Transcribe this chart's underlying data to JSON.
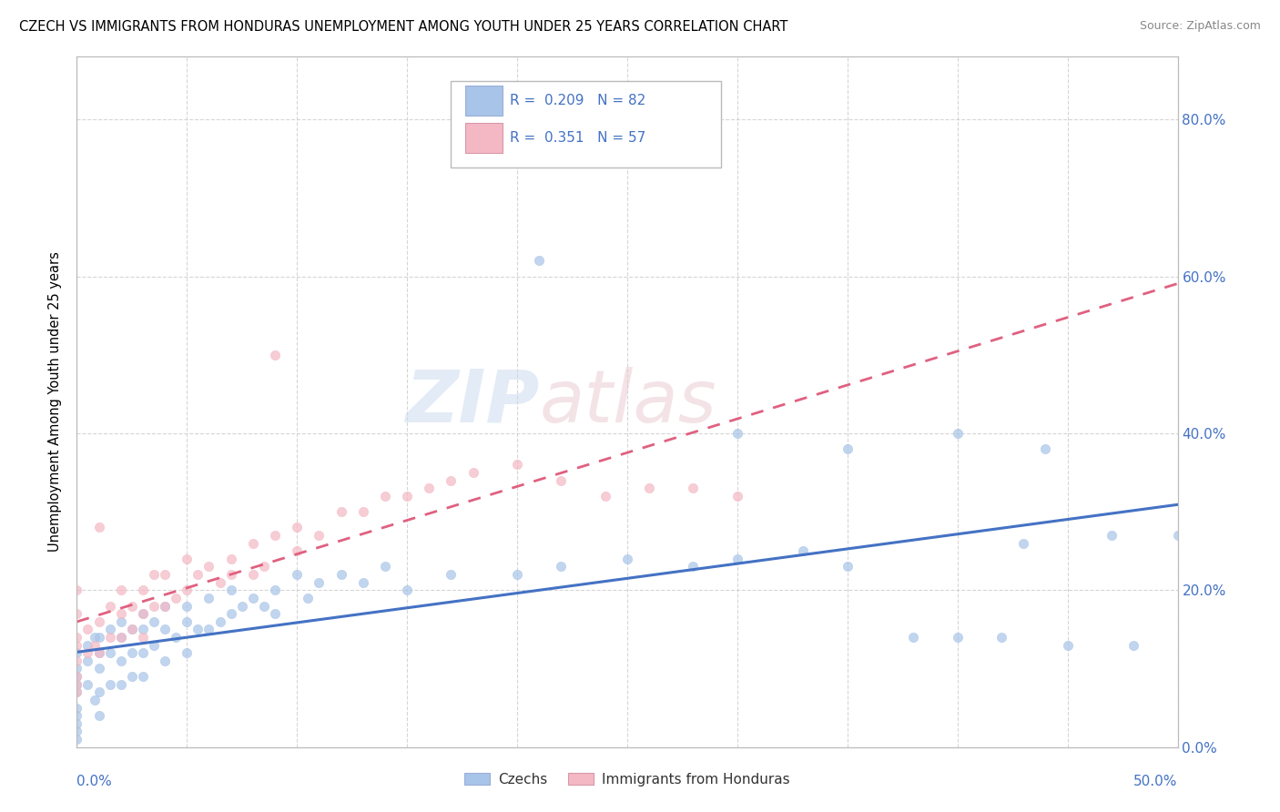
{
  "title": "CZECH VS IMMIGRANTS FROM HONDURAS UNEMPLOYMENT AMONG YOUTH UNDER 25 YEARS CORRELATION CHART",
  "source": "Source: ZipAtlas.com",
  "ylabel": "Unemployment Among Youth under 25 years",
  "right_ytick_vals": [
    0.0,
    0.2,
    0.4,
    0.6,
    0.8
  ],
  "right_ytick_labels": [
    "0.0%",
    "20.0%",
    "40.0%",
    "60.0%",
    "80.0%"
  ],
  "xlim": [
    0.0,
    0.5
  ],
  "ylim": [
    0.0,
    0.88
  ],
  "legend_R1": "0.209",
  "legend_N1": "82",
  "legend_R2": "0.351",
  "legend_N2": "57",
  "color_czech": "#a8c4e8",
  "color_czech_line": "#4472c4",
  "color_honduras": "#f4b8c4",
  "color_honduras_line": "#e06080",
  "color_label_blue": "#4472c4",
  "color_dark": "#333333",
  "watermark_color": "#d0dff0",
  "watermark_color2": "#e8d0d8",
  "background": "#ffffff",
  "grid_color": "#cccccc",
  "czechs_x": [
    0.0,
    0.0,
    0.0,
    0.0,
    0.0,
    0.0,
    0.0,
    0.0,
    0.0,
    0.0,
    0.005,
    0.005,
    0.005,
    0.008,
    0.008,
    0.01,
    0.01,
    0.01,
    0.01,
    0.01,
    0.015,
    0.015,
    0.015,
    0.02,
    0.02,
    0.02,
    0.02,
    0.025,
    0.025,
    0.025,
    0.03,
    0.03,
    0.03,
    0.03,
    0.035,
    0.035,
    0.04,
    0.04,
    0.04,
    0.045,
    0.05,
    0.05,
    0.05,
    0.055,
    0.06,
    0.06,
    0.065,
    0.07,
    0.07,
    0.075,
    0.08,
    0.085,
    0.09,
    0.09,
    0.1,
    0.105,
    0.11,
    0.12,
    0.13,
    0.14,
    0.15,
    0.17,
    0.2,
    0.22,
    0.25,
    0.28,
    0.3,
    0.33,
    0.35,
    0.38,
    0.4,
    0.42,
    0.43,
    0.45,
    0.47,
    0.48,
    0.21,
    0.3,
    0.35,
    0.4,
    0.44,
    0.5
  ],
  "czechs_y": [
    0.12,
    0.1,
    0.09,
    0.08,
    0.07,
    0.05,
    0.04,
    0.03,
    0.02,
    0.01,
    0.13,
    0.11,
    0.08,
    0.14,
    0.06,
    0.14,
    0.12,
    0.1,
    0.07,
    0.04,
    0.15,
    0.12,
    0.08,
    0.16,
    0.14,
    0.11,
    0.08,
    0.15,
    0.12,
    0.09,
    0.17,
    0.15,
    0.12,
    0.09,
    0.16,
    0.13,
    0.18,
    0.15,
    0.11,
    0.14,
    0.18,
    0.16,
    0.12,
    0.15,
    0.19,
    0.15,
    0.16,
    0.2,
    0.17,
    0.18,
    0.19,
    0.18,
    0.2,
    0.17,
    0.22,
    0.19,
    0.21,
    0.22,
    0.21,
    0.23,
    0.2,
    0.22,
    0.22,
    0.23,
    0.24,
    0.23,
    0.24,
    0.25,
    0.23,
    0.14,
    0.14,
    0.14,
    0.26,
    0.13,
    0.27,
    0.13,
    0.62,
    0.4,
    0.38,
    0.4,
    0.38,
    0.27
  ],
  "honduras_x": [
    0.0,
    0.0,
    0.0,
    0.0,
    0.0,
    0.0,
    0.0,
    0.0,
    0.005,
    0.005,
    0.008,
    0.01,
    0.01,
    0.01,
    0.015,
    0.015,
    0.02,
    0.02,
    0.02,
    0.025,
    0.025,
    0.03,
    0.03,
    0.03,
    0.035,
    0.035,
    0.04,
    0.04,
    0.045,
    0.05,
    0.05,
    0.055,
    0.06,
    0.065,
    0.07,
    0.07,
    0.08,
    0.08,
    0.085,
    0.09,
    0.09,
    0.1,
    0.1,
    0.11,
    0.12,
    0.13,
    0.14,
    0.15,
    0.16,
    0.17,
    0.18,
    0.2,
    0.22,
    0.24,
    0.26,
    0.28,
    0.3
  ],
  "honduras_y": [
    0.13,
    0.11,
    0.09,
    0.08,
    0.07,
    0.14,
    0.17,
    0.2,
    0.15,
    0.12,
    0.13,
    0.28,
    0.16,
    0.12,
    0.18,
    0.14,
    0.2,
    0.17,
    0.14,
    0.18,
    0.15,
    0.2,
    0.17,
    0.14,
    0.18,
    0.22,
    0.22,
    0.18,
    0.19,
    0.24,
    0.2,
    0.22,
    0.23,
    0.21,
    0.24,
    0.22,
    0.26,
    0.22,
    0.23,
    0.5,
    0.27,
    0.28,
    0.25,
    0.27,
    0.3,
    0.3,
    0.32,
    0.32,
    0.33,
    0.34,
    0.35,
    0.36,
    0.34,
    0.32,
    0.33,
    0.33,
    0.32
  ]
}
